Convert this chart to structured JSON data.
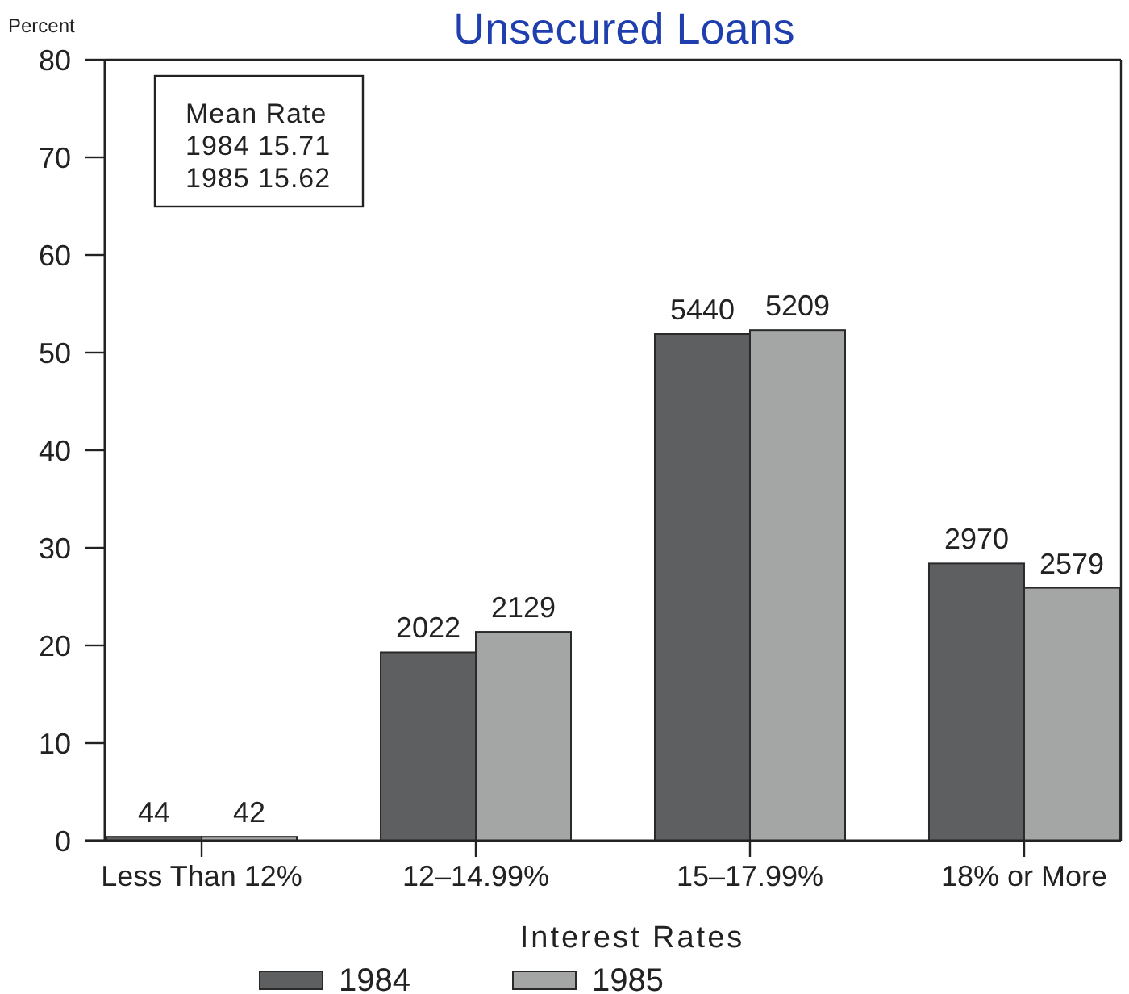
{
  "chart_data": {
    "type": "bar",
    "title": "Unsecured Loans",
    "xlabel": "Interest Rates",
    "ylabel": "Percent",
    "categories": [
      "Less Than 12%",
      "12–14.99%",
      "15–17.99%",
      "18% or More"
    ],
    "series": [
      {
        "name": "1984",
        "color": "#5e5f61",
        "values": [
          0.4,
          19.3,
          51.9,
          28.4
        ]
      },
      {
        "name": "1985",
        "color": "#a4a6a6",
        "values": [
          0.4,
          21.4,
          52.3,
          25.9
        ]
      }
    ],
    "ylim": [
      0,
      80
    ],
    "yticks": [
      0,
      10,
      20,
      30,
      40,
      50,
      60,
      70,
      80
    ],
    "legend": "bottom",
    "annotations": [
      "Mean Rate",
      "1984 15.71",
      "1985 15.62",
      {
        "text": "44",
        "x": "Less Than 12%",
        "y": 0.4
      },
      {
        "text": "42",
        "x": "Less Than 12%",
        "y": 0.4
      },
      {
        "text": "2022",
        "x": "12–14.99%",
        "y": 19.3
      },
      {
        "text": "2129",
        "x": "12–14.99%",
        "y": 21.4
      },
      {
        "text": "5440",
        "x": "15–17.99%",
        "y": 51.9
      },
      {
        "text": "5209",
        "x": "15–17.99%",
        "y": 52.3
      },
      {
        "text": "2970",
        "x": "18% or More",
        "y": 28.4
      },
      {
        "text": "2579",
        "x": "18% or More",
        "y": 25.9
      }
    ]
  }
}
